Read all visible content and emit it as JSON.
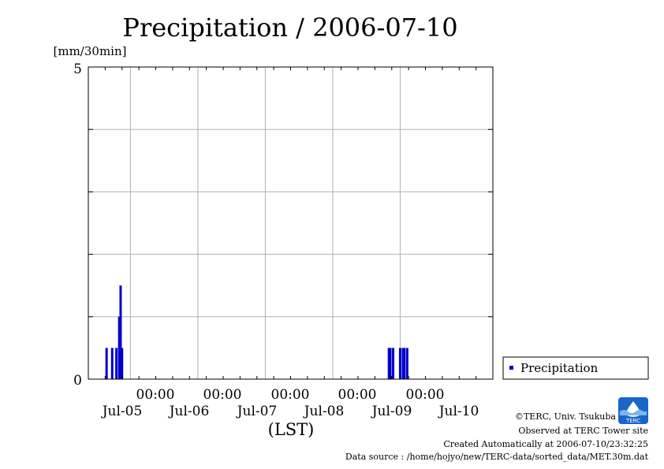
{
  "chart_data": {
    "type": "bar",
    "title": "Precipitation / 2006-07-10",
    "ylabel": "[mm/30min]",
    "xlabel": "(LST)",
    "ylim": [
      0,
      5
    ],
    "y_tick_labels": [
      "0",
      "5"
    ],
    "x_time_labels": [
      "00:00",
      "00:00",
      "00:00",
      "00:00",
      "00:00"
    ],
    "x_date_labels": [
      "Jul-05",
      "Jul-06",
      "Jul-07",
      "Jul-08",
      "Jul-09",
      "Jul-10"
    ],
    "grid": true,
    "legend_position": "right",
    "series": [
      {
        "name": "Precipitation",
        "color": "#0000cc",
        "points": [
          {
            "t": "2006-07-04 15:30",
            "v": 0.5
          },
          {
            "t": "2006-07-04 17:30",
            "v": 0.5
          },
          {
            "t": "2006-07-04 19:00",
            "v": 0.5
          },
          {
            "t": "2006-07-04 20:00",
            "v": 1.0
          },
          {
            "t": "2006-07-04 20:30",
            "v": 1.5
          },
          {
            "t": "2006-07-04 21:00",
            "v": 0.5
          },
          {
            "t": "2006-07-08 20:00",
            "v": 0.5
          },
          {
            "t": "2006-07-08 20:30",
            "v": 0.5
          },
          {
            "t": "2006-07-08 21:30",
            "v": 0.5
          },
          {
            "t": "2006-07-09 00:00",
            "v": 0.5
          },
          {
            "t": "2006-07-09 01:00",
            "v": 0.5
          },
          {
            "t": "2006-07-09 01:30",
            "v": 0.5
          },
          {
            "t": "2006-07-09 02:30",
            "v": 0.5
          }
        ]
      }
    ]
  },
  "credits": {
    "copyright": "©TERC, Univ. Tsukuba",
    "observed": "Observed at TERC Tower site",
    "created": "Created Automatically at 2006-07-10/23:32:25",
    "source": "Data source : /home/hojyo/new/TERC-data/sorted_data/MET.30m.dat",
    "logo_text": "TERC"
  }
}
